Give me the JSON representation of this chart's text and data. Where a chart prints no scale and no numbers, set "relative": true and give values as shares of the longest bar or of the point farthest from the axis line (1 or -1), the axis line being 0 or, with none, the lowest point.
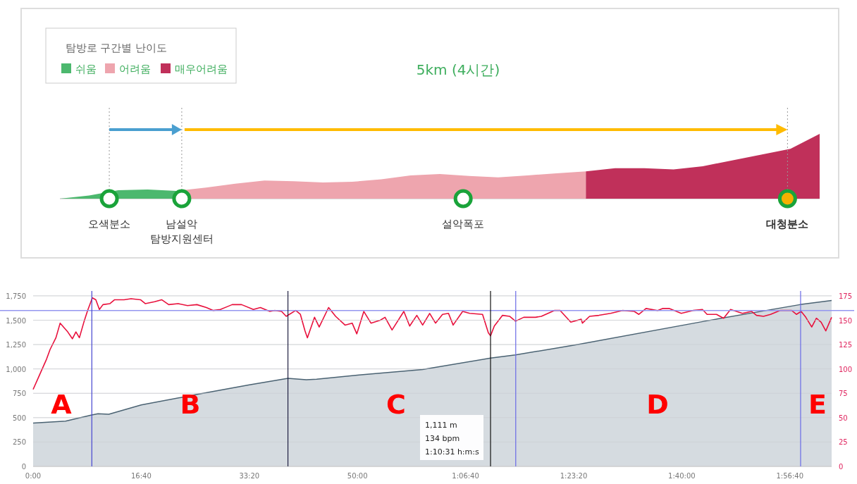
{
  "chart_data": [
    {
      "type": "area",
      "relative": true,
      "title": "5km (4시간)",
      "legend_title": "탐방로 구간별 난이도",
      "legend": "top left",
      "categories": [
        null,
        null,
        null,
        null,
        null,
        null,
        null,
        null,
        null,
        null,
        null,
        null,
        null,
        null,
        null,
        null,
        null,
        null,
        null,
        null,
        null,
        null,
        null,
        null,
        null,
        null,
        null
      ],
      "series": [
        {
          "name": "쉬움",
          "color": "#4cb86e",
          "values": [
            0,
            0.05,
            0.13,
            0.14,
            0.12,
            null,
            null,
            null,
            null,
            null,
            null,
            null,
            null,
            null,
            null,
            null,
            null,
            null,
            null,
            null,
            null,
            null,
            null,
            null,
            null,
            null,
            null
          ]
        },
        {
          "name": "어려움",
          "color": "#eea5ae",
          "values": [
            null,
            null,
            null,
            null,
            0.12,
            0.17,
            0.23,
            0.28,
            0.27,
            0.25,
            0.26,
            0.3,
            0.36,
            0.38,
            0.35,
            0.33,
            0.36,
            0.39,
            0.42,
            null,
            null,
            null,
            null,
            null,
            null,
            null,
            null
          ]
        },
        {
          "name": "매우어려움",
          "color": "#c0305a",
          "values": [
            null,
            null,
            null,
            null,
            null,
            null,
            null,
            null,
            null,
            null,
            null,
            null,
            null,
            null,
            null,
            null,
            null,
            null,
            0.42,
            0.47,
            0.47,
            0.45,
            0.5,
            0.59,
            0.68,
            0.77,
            1
          ]
        }
      ],
      "annotations": [
        "오색분소",
        "남설악\n탐방지원센터",
        "설악폭포",
        "대청분소"
      ]
    },
    {
      "type": "area",
      "xlim": [
        0,
        7386
      ],
      "xticks": [
        {
          "value": 0,
          "label": "0:00"
        },
        {
          "value": 1000,
          "label": "16:40"
        },
        {
          "value": 2000,
          "label": "33:20"
        },
        {
          "value": 3000,
          "label": "50:00"
        },
        {
          "value": 4000,
          "label": "1:06:40"
        },
        {
          "value": 5000,
          "label": "1:23:20"
        },
        {
          "value": 6000,
          "label": "1:40:00"
        },
        {
          "value": 7000,
          "label": "1:56:40"
        }
      ],
      "ylim": [
        0,
        1800
      ],
      "yticks": [
        0,
        250,
        500,
        750,
        {
          "value": 1000,
          "label": "1,000"
        },
        {
          "value": 1250,
          "label": "1,250"
        },
        {
          "value": 1500,
          "label": "1,500"
        },
        {
          "value": 1750,
          "label": "1,750"
        }
      ],
      "y2lim": [
        0,
        180
      ],
      "y2ticks": [
        0,
        25,
        50,
        75,
        100,
        125,
        150,
        175
      ],
      "grid": "y",
      "series": [
        {
          "type": "area",
          "color": "#4a6272",
          "x": [
            0,
            300,
            543,
            600,
            700,
            1000,
            1500,
            2000,
            2357,
            2527,
            2622,
            3015,
            3602,
            4231,
            4462,
            5038,
            6213,
            7093,
            7386
          ],
          "values": [
            445,
            465,
            527,
            540,
            535,
            631,
            735,
            837,
            903,
            889,
            895,
            938,
            994,
            1111,
            1144,
            1250,
            1490,
            1660,
            1703
          ]
        },
        {
          "type": "line",
          "axis": "y2",
          "color": "#e8103c",
          "x": [
            0,
            56,
            124,
            157,
            211,
            250,
            320,
            363,
            396,
            428,
            472,
            504,
            548,
            580,
            613,
            646,
            711,
            754,
            841,
            906,
            993,
            1037,
            1124,
            1189,
            1254,
            1341,
            1428,
            1515,
            1602,
            1667,
            1732,
            1798,
            1841,
            1928,
            2037,
            2102,
            2189,
            2233,
            2298,
            2341,
            2429,
            2472,
            2515,
            2537,
            2603,
            2646,
            2733,
            2798,
            2885,
            2951,
            2994,
            3059,
            3125,
            3211,
            3255,
            3320,
            3429,
            3483,
            3549,
            3603,
            3668,
            3722,
            3787,
            3842,
            3885,
            3973,
            4038,
            4157,
            4211,
            4231,
            4266,
            4342,
            4407,
            4462,
            4538,
            4647,
            4701,
            4821,
            4875,
            4973,
            5070,
            5081,
            5147,
            5234,
            5342,
            5451,
            5560,
            5603,
            5669,
            5777,
            5821,
            5886,
            5995,
            6104,
            6191,
            6234,
            6321,
            6387,
            6451,
            6560,
            6647,
            6691,
            6756,
            6821,
            6908,
            7016,
            7060,
            7104,
            7147,
            7202,
            7245,
            7289,
            7332,
            7386
          ],
          "values": [
            79,
            93,
            110,
            120,
            132,
            147,
            138,
            131,
            138,
            132,
            149,
            160,
            173,
            171,
            161,
            166,
            167,
            171,
            171,
            172,
            171,
            167,
            169,
            171,
            166,
            167,
            165,
            166,
            163,
            160,
            161,
            164,
            166,
            166,
            161,
            163,
            159,
            160,
            159,
            154,
            160,
            156,
            139,
            132,
            153,
            143,
            163,
            154,
            145,
            147,
            136,
            159,
            147,
            150,
            153,
            140,
            159,
            144,
            155,
            145,
            157,
            147,
            156,
            157,
            145,
            159,
            157,
            156,
            137,
            134,
            144,
            155,
            154,
            149,
            153,
            153,
            154,
            160,
            160,
            148,
            151,
            147,
            154,
            155,
            157,
            160,
            159,
            156,
            162,
            160,
            162,
            162,
            157,
            160,
            161,
            156,
            156,
            152,
            161,
            157,
            159,
            155,
            154,
            156,
            160,
            160,
            156,
            159,
            153,
            143,
            152,
            148,
            139,
            153
          ]
        }
      ],
      "ref_lines": [
        {
          "axis": "y2",
          "value": 160,
          "color": "#9496f0"
        },
        {
          "axis": "x",
          "value": 543,
          "color": "#4646d0"
        },
        {
          "axis": "x",
          "value": 2357,
          "color": "#1e1e40"
        },
        {
          "axis": "x",
          "value": 4231,
          "color": "#111111"
        },
        {
          "axis": "x",
          "value": 4464,
          "color": "#6a6ae6"
        },
        {
          "axis": "x",
          "value": 7099,
          "color": "#6a6ae6"
        }
      ],
      "annotations": [
        "A",
        "B",
        "C",
        "D",
        "E",
        "1,111 m\n134 bpm\n1:10:31 h:m:s"
      ]
    }
  ]
}
